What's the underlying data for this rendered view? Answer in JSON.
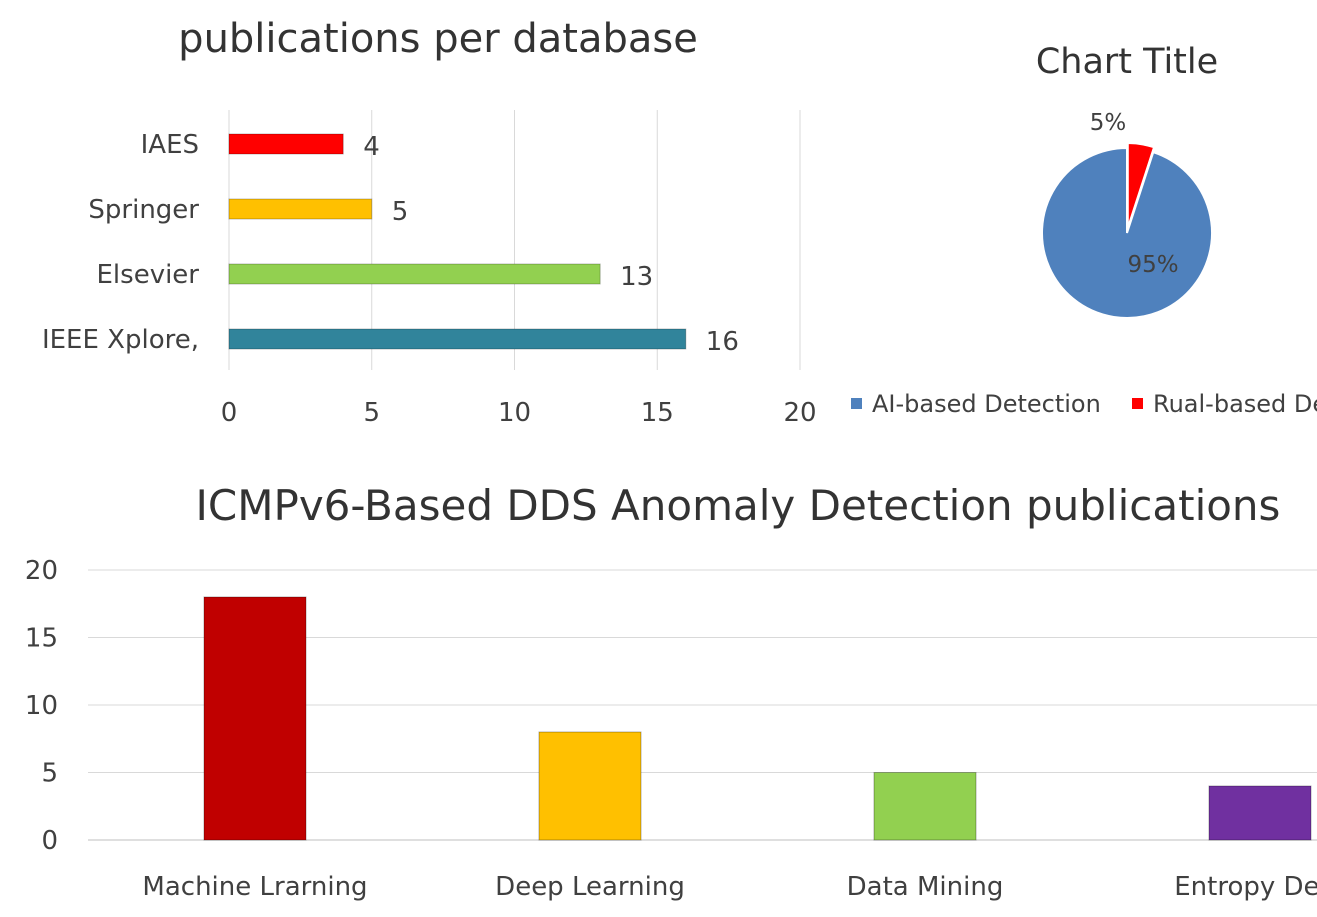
{
  "chart_data": [
    {
      "type": "bar",
      "orientation": "horizontal",
      "title": "publications per database",
      "categories": [
        "IAES",
        "Springer",
        "Elsevier",
        "IEEE Xplore,"
      ],
      "values": [
        4,
        5,
        13,
        16
      ],
      "data_labels": [
        "4",
        "5",
        "13",
        "16"
      ],
      "colors": [
        "#ff0000",
        "#ffc000",
        "#92d050",
        "#31849b"
      ],
      "xlim": [
        0,
        20
      ],
      "xticks": [
        "0",
        "5",
        "10",
        "15",
        "20"
      ],
      "grid": true,
      "legend": "none"
    },
    {
      "type": "pie",
      "title": "Chart Title",
      "labels": [
        "AI-based Detection",
        "Rual-based De"
      ],
      "values": [
        95,
        5
      ],
      "data_labels": [
        "95%",
        "5%"
      ],
      "colors": [
        "#4f81bd",
        "#ff0000"
      ],
      "legend": "bottom"
    },
    {
      "type": "bar",
      "orientation": "vertical",
      "title": "ICMPv6-Based DDS Anomaly Detection publications",
      "categories": [
        "Machine Lrarning",
        "Deep  Learning",
        "Data Mining",
        "Entropy Dete"
      ],
      "values": [
        18,
        8,
        5,
        4
      ],
      "colors": [
        "#c00000",
        "#ffc000",
        "#92d050",
        "#7030a0"
      ],
      "ylim": [
        0,
        20
      ],
      "yticks": [
        "0",
        "5",
        "10",
        "15",
        "20"
      ],
      "grid": true,
      "legend": "none"
    }
  ]
}
